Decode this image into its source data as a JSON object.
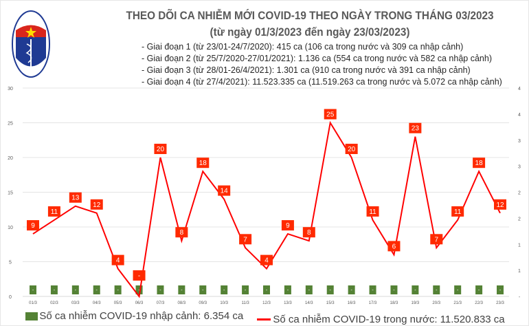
{
  "header": {
    "title": "THEO DÕI CA NHIỄM MỚI COVID-19 THEO NGÀY TRONG THÁNG 03/2023",
    "subtitle": "(từ ngày 01/3/2023 đến ngày 23/03/2023)",
    "notes": [
      "- Giai đoạn 1 (từ 23/01-24/7/2020): 415 ca (106 ca trong nước và 309 ca nhập cảnh)",
      "- Giai đoạn 2 (từ 25/7/2020-27/01/2021): 1.136 ca (554 ca trong nước và 582 ca nhập cảnh)",
      "- Giai đoạn 3 (từ 28/01-26/4/2021): 1.301 ca (910 ca trong nước và 391 ca nhập cảnh)",
      "- Giai đoạn 4 (từ 27/4/2021): 11.523.335 ca (11.519.263 ca trong nước và 5.072 ca nhập cảnh)"
    ],
    "logo_text": "BỘ Y TẾ · MINISTRY OF HEALTH"
  },
  "chart_data": {
    "type": "line",
    "categories": [
      "01/3",
      "02/3",
      "03/3",
      "04/3",
      "05/3",
      "06/3",
      "07/3",
      "08/3",
      "09/3",
      "10/3",
      "11/3",
      "12/3",
      "13/3",
      "14/3",
      "15/3",
      "16/3",
      "17/3",
      "18/3",
      "19/3",
      "20/3",
      "21/3",
      "22/3",
      "23/3"
    ],
    "series": [
      {
        "name": "Số ca nhiễm COVID-19 nhập cảnh: 6.354 ca",
        "type": "bar",
        "axis": "right",
        "color": "#548235",
        "values": [
          0,
          0,
          0,
          0,
          0,
          0,
          0,
          0,
          0,
          0,
          0,
          0,
          0,
          0,
          0,
          0,
          0,
          0,
          0,
          0,
          0,
          0,
          0
        ],
        "labels": [
          "-",
          "-",
          "-",
          "-",
          "-",
          "-",
          "-",
          "-",
          "-",
          "-",
          "-",
          "-",
          "-",
          "-",
          "-",
          "-",
          "-",
          "-",
          "-",
          "-",
          "-",
          "-",
          "-"
        ]
      },
      {
        "name": "Số ca nhiễm COVID-19 trong nước: 11.520.833 ca",
        "type": "line",
        "axis": "left",
        "color": "#ff0000",
        "values": [
          9,
          11,
          13,
          12,
          4,
          0,
          20,
          8,
          18,
          14,
          7,
          4,
          9,
          8,
          25,
          20,
          11,
          6,
          23,
          7,
          11,
          18,
          12
        ],
        "labels": [
          "9",
          "11",
          "13",
          "12",
          "4",
          "-",
          "20",
          "8",
          "18",
          "14",
          "7",
          "4",
          "9",
          "8",
          "25",
          "20",
          "11",
          "6",
          "23",
          "7",
          "11",
          "18",
          "12"
        ]
      }
    ],
    "y_left": {
      "ylim": [
        0,
        30
      ],
      "ticks": [
        "0",
        "5",
        "10",
        "15",
        "20",
        "25",
        "30"
      ]
    },
    "y_right": {
      "ylim": [
        0,
        4
      ],
      "ticks": [
        "-",
        "1",
        "1",
        "2",
        "2",
        "3",
        "3",
        "4",
        "4"
      ]
    },
    "grid": true,
    "legend": "bottom"
  }
}
